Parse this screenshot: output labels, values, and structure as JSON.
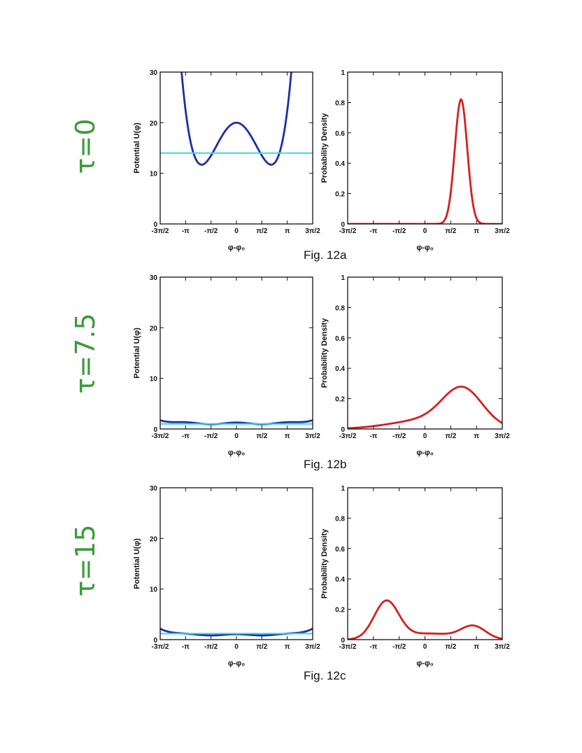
{
  "rows": [
    {
      "tau_label": "τ=0",
      "caption": "Fig. 12a",
      "potential_chart": {
        "type": "line",
        "ylabel": "Potential U(φ)",
        "xlabel": "φ-φ₀",
        "xlim": [
          -4.712,
          4.712
        ],
        "ylim": [
          0,
          30
        ],
        "x_ticks": [
          -4.712,
          -3.1416,
          -1.5708,
          0,
          1.5708,
          3.1416,
          4.712
        ],
        "x_tick_labels": [
          "-3π/2",
          "-π",
          "-π/2",
          "0",
          "π/2",
          "π",
          "3π/2"
        ],
        "y_ticks": [
          0,
          10,
          20,
          30
        ],
        "y_tick_labels": [
          "0",
          "10",
          "20",
          "30"
        ],
        "series": [
          {
            "color": "#1c2ea8",
            "kind": "quartic",
            "params": {
              "a": 8.2,
              "min_x": 2.15,
              "depth": 8.3,
              "top": 20
            }
          },
          {
            "color": "#33dde0",
            "kind": "hline",
            "params": {
              "y": 14
            }
          }
        ]
      },
      "density_chart": {
        "type": "line",
        "ylabel": "Probability Density",
        "xlabel": "φ-φ₀",
        "xlim": [
          -4.712,
          4.712
        ],
        "ylim": [
          0,
          1
        ],
        "x_ticks": [
          -4.712,
          -3.1416,
          -1.5708,
          0,
          1.5708,
          3.1416,
          4.712
        ],
        "x_tick_labels": [
          "-3π/2",
          "-π",
          "-π/2",
          "0",
          "π/2",
          "π",
          "3π/2"
        ],
        "y_ticks": [
          0,
          0.2,
          0.4,
          0.6,
          0.8,
          1
        ],
        "y_tick_labels": [
          "0",
          "0.2",
          "0.4",
          "0.6",
          "0.8",
          "1"
        ],
        "series": [
          {
            "color": "#d42020",
            "kind": "gauss",
            "params": {
              "peaks": [
                [
                  2.2,
                  0.82,
                  0.38
                ]
              ]
            }
          }
        ]
      }
    },
    {
      "tau_label": "τ=7.5",
      "caption": "Fig. 12b",
      "potential_chart": {
        "type": "line",
        "ylabel": "Potential U(φ)",
        "xlabel": "φ-φ₀",
        "xlim": [
          -4.712,
          4.712
        ],
        "ylim": [
          0,
          30
        ],
        "x_ticks": [
          -4.712,
          -3.1416,
          -1.5708,
          0,
          1.5708,
          3.1416,
          4.712
        ],
        "x_tick_labels": [
          "-3π/2",
          "-π",
          "-π/2",
          "0",
          "π/2",
          "π",
          "3π/2"
        ],
        "y_ticks": [
          0,
          10,
          20,
          30
        ],
        "y_tick_labels": [
          "0",
          "10",
          "20",
          "30"
        ],
        "series": [
          {
            "color": "#1c2ea8",
            "kind": "wave",
            "params": {
              "base": 1.1,
              "amp": 0.35,
              "edge": 1.9
            }
          },
          {
            "color": "#33dde0",
            "kind": "hline",
            "params": {
              "y": 1.0
            }
          }
        ]
      },
      "density_chart": {
        "type": "line",
        "ylabel": "Probability Density",
        "xlabel": "φ-φ₀",
        "xlim": [
          -4.712,
          4.712
        ],
        "ylim": [
          0,
          1
        ],
        "x_ticks": [
          -4.712,
          -3.1416,
          -1.5708,
          0,
          1.5708,
          3.1416,
          4.712
        ],
        "x_tick_labels": [
          "-3π/2",
          "-π",
          "-π/2",
          "0",
          "π/2",
          "π",
          "3π/2"
        ],
        "y_ticks": [
          0,
          0.2,
          0.4,
          0.6,
          0.8,
          1
        ],
        "y_tick_labels": [
          "0",
          "0.2",
          "0.4",
          "0.6",
          "0.8",
          "1"
        ],
        "series": [
          {
            "color": "#d42020",
            "kind": "gauss",
            "params": {
              "peaks": [
                [
                  2.3,
                  0.24,
                  1.2
                ],
                [
                  0.2,
                  0.06,
                  2.2
                ]
              ]
            }
          }
        ]
      }
    },
    {
      "tau_label": "τ=15",
      "caption": "Fig. 12c",
      "potential_chart": {
        "type": "line",
        "ylabel": "Potential U(φ)",
        "xlabel": "φ-φ₀",
        "xlim": [
          -4.712,
          4.712
        ],
        "ylim": [
          0,
          30
        ],
        "x_ticks": [
          -4.712,
          -3.1416,
          -1.5708,
          0,
          1.5708,
          3.1416,
          4.712
        ],
        "x_tick_labels": [
          "-3π/2",
          "-π",
          "-π/2",
          "0",
          "π/2",
          "π",
          "3π/2"
        ],
        "y_ticks": [
          0,
          10,
          20,
          30
        ],
        "y_tick_labels": [
          "0",
          "10",
          "20",
          "30"
        ],
        "series": [
          {
            "color": "#1c2ea8",
            "kind": "wave",
            "params": {
              "base": 0.95,
              "amp": 0.25,
              "edge": 2.3
            }
          },
          {
            "color": "#33dde0",
            "kind": "hline",
            "params": {
              "y": 1.2
            }
          }
        ]
      },
      "density_chart": {
        "type": "line",
        "ylabel": "Probability Density",
        "xlabel": "φ-φ₀",
        "xlim": [
          -4.712,
          4.712
        ],
        "ylim": [
          0,
          1
        ],
        "x_ticks": [
          -4.712,
          -3.1416,
          -1.5708,
          0,
          1.5708,
          3.1416,
          4.712
        ],
        "x_tick_labels": [
          "-3π/2",
          "-π",
          "-π/2",
          "0",
          "π/2",
          "π",
          "3π/2"
        ],
        "y_ticks": [
          0,
          0.2,
          0.4,
          0.6,
          0.8,
          1
        ],
        "y_tick_labels": [
          "0",
          "0.2",
          "0.4",
          "0.6",
          "0.8",
          "1"
        ],
        "series": [
          {
            "color": "#d42020",
            "kind": "gauss",
            "params": {
              "peaks": [
                [
                  -2.35,
                  0.25,
                  0.75
                ],
                [
                  2.95,
                  0.085,
                  0.75
                ],
                [
                  0.3,
                  0.04,
                  1.5
                ]
              ]
            }
          }
        ]
      }
    }
  ]
}
